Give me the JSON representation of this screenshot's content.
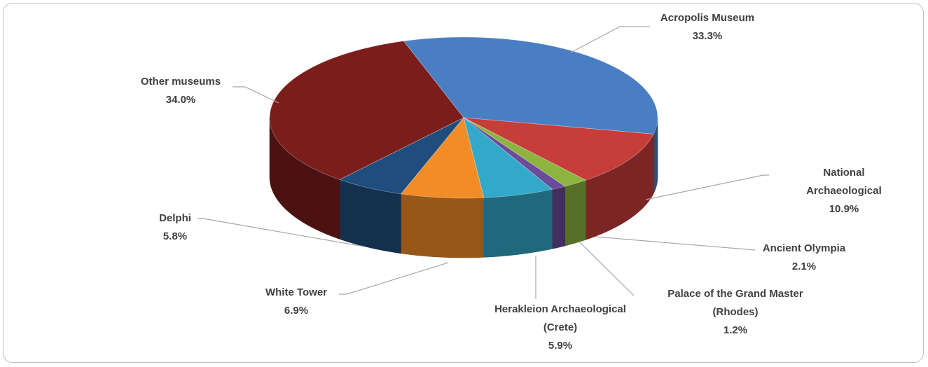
{
  "chart_data": {
    "type": "pie3d",
    "categories": [
      "Acropolis Museum",
      "National Archaeological",
      "Ancient Olympia",
      "Palace of the Grand Master\n(Rhodes)",
      "Herakleion Archaeological\n(Crete)",
      "White Tower",
      "Delphi",
      "Other museums"
    ],
    "values": [
      33.3,
      10.9,
      2.1,
      1.2,
      5.9,
      6.9,
      5.8,
      34.0
    ],
    "value_labels": [
      "33.3%",
      "10.9%",
      "2.1%",
      "1.2%",
      "5.9%",
      "6.9%",
      "5.8%",
      "34.0%"
    ],
    "colors": [
      "#4a7ec2",
      "#c63d3a",
      "#8db43f",
      "#6b4c9b",
      "#32a9c9",
      "#f28c26",
      "#1f4d7d",
      "#7b1d1b"
    ]
  }
}
